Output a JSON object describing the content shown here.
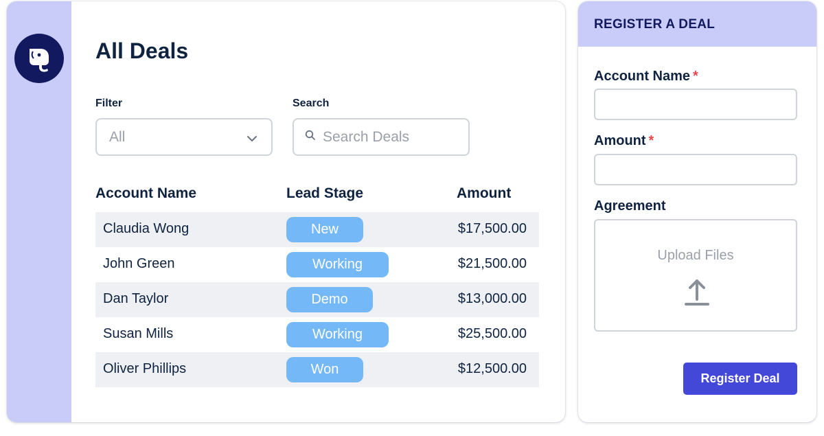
{
  "main": {
    "title": "All Deals",
    "filter": {
      "label": "Filter",
      "value": "All"
    },
    "search": {
      "label": "Search",
      "placeholder": "Search Deals"
    },
    "table": {
      "columns": [
        "Account Name",
        "Lead Stage",
        "Amount"
      ],
      "rows": [
        {
          "name": "Claudia Wong",
          "stage": "New",
          "amount": "$17,500.00"
        },
        {
          "name": "John Green",
          "stage": "Working",
          "amount": "$21,500.00"
        },
        {
          "name": "Dan Taylor",
          "stage": "Demo",
          "amount": "$13,000.00"
        },
        {
          "name": "Susan Mills",
          "stage": "Working",
          "amount": "$25,500.00"
        },
        {
          "name": "Oliver Phillips",
          "stage": "Won",
          "amount": "$12,500.00"
        }
      ]
    }
  },
  "register": {
    "title": "REGISTER A DEAL",
    "account_label": "Account Name",
    "amount_label": "Amount",
    "required_mark": "*",
    "agreement_label": "Agreement",
    "upload_text": "Upload Files",
    "submit_label": "Register Deal"
  },
  "icons": {
    "logo": "elephant-logo-icon",
    "filter_chevron": "chevron-down-icon",
    "search": "search-icon",
    "upload": "upload-arrow-icon"
  },
  "colors": {
    "accent_lavender": "#c9cbf8",
    "logo_navy": "#13195e",
    "stage_pill": "#74b8f7",
    "primary_button": "#4448d9",
    "required": "#e5484d"
  }
}
